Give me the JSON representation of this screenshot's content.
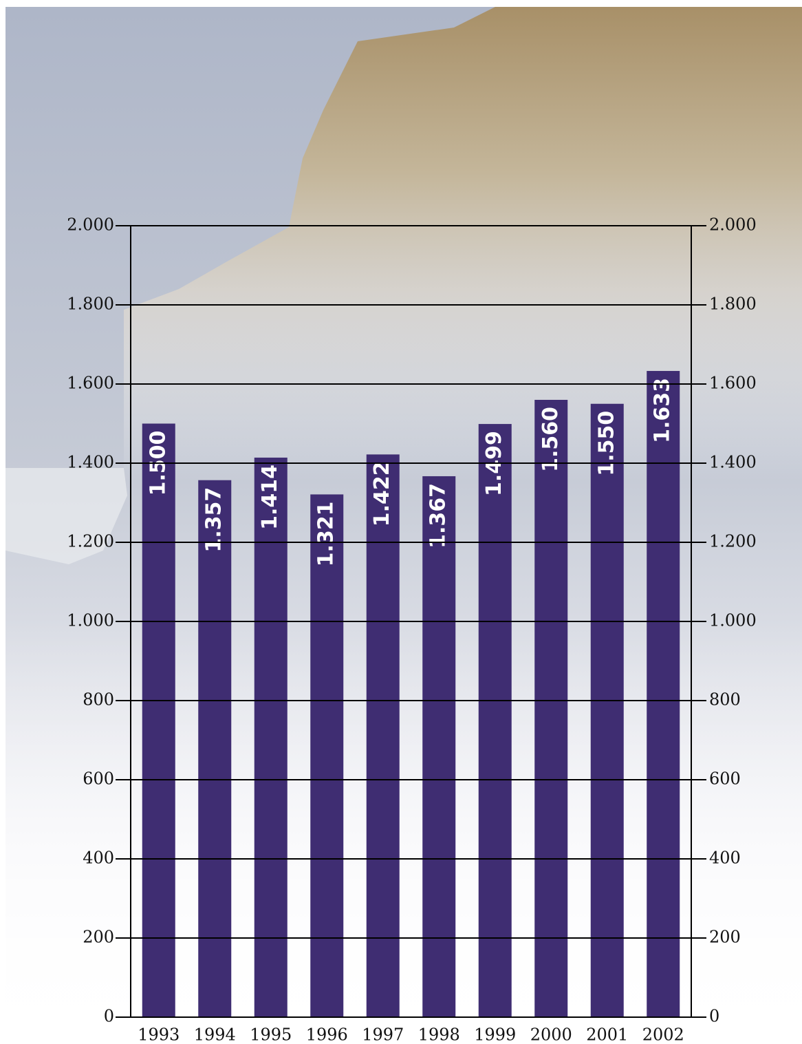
{
  "chart_data": {
    "type": "bar",
    "categories": [
      "1993",
      "1994",
      "1995",
      "1996",
      "1997",
      "1998",
      "1999",
      "2000",
      "2001",
      "2002"
    ],
    "values": [
      1500,
      1357,
      1414,
      1321,
      1422,
      1367,
      1499,
      1560,
      1550,
      1633
    ],
    "value_labels": [
      "1.500",
      "1.357",
      "1.414",
      "1.321",
      "1.422",
      "1.367",
      "1.499",
      "1.560",
      "1.550",
      "1.633"
    ],
    "color": "#3f2d72",
    "ylim": [
      0,
      2000
    ],
    "yticks": [
      0,
      200,
      400,
      600,
      800,
      {
        "value": 1000,
        "label": "1.000"
      },
      {
        "value": 1200,
        "label": "1.200"
      },
      {
        "value": 1400,
        "label": "1.400"
      },
      {
        "value": 1600,
        "label": "1.600"
      },
      {
        "value": 1800,
        "label": "1.800"
      },
      {
        "value": 2000,
        "label": "2.000"
      }
    ],
    "grid": true
  }
}
